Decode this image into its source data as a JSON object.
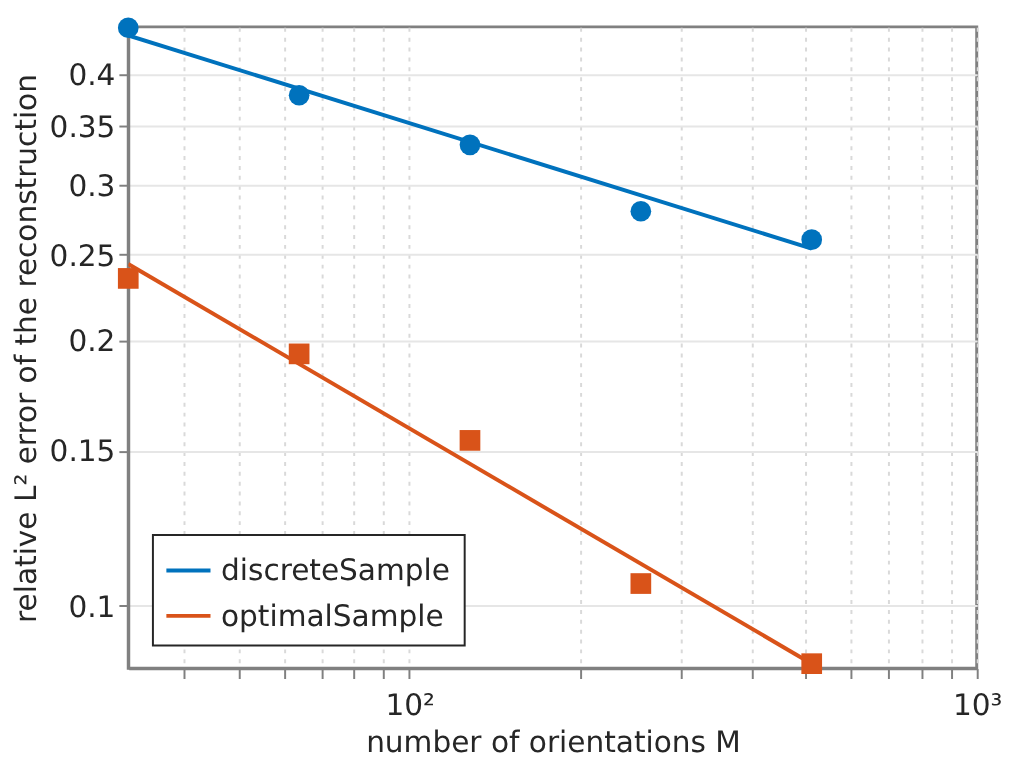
{
  "chart_data": {
    "type": "line",
    "xlabel": "number of orientations M",
    "ylabel": "relative L² error of the reconstruction",
    "log": "xy",
    "grid": true,
    "legend": "bottom left",
    "xlim": [
      32,
      1000
    ],
    "ylim": [
      0.085,
      0.453
    ],
    "xticks": [
      {
        "value": 40,
        "label": null
      },
      {
        "value": 50,
        "label": null
      },
      {
        "value": 60,
        "label": null
      },
      {
        "value": 70,
        "label": null
      },
      {
        "value": 80,
        "label": null
      },
      {
        "value": 90,
        "label": null
      },
      {
        "value": 100,
        "label": "10²"
      },
      {
        "value": 200,
        "label": null
      },
      {
        "value": 300,
        "label": null
      },
      {
        "value": 400,
        "label": null
      },
      {
        "value": 500,
        "label": null
      },
      {
        "value": 600,
        "label": null
      },
      {
        "value": 700,
        "label": null
      },
      {
        "value": 800,
        "label": null
      },
      {
        "value": 900,
        "label": null
      },
      {
        "value": 1000,
        "label": "10³"
      }
    ],
    "yticks": [
      0.1,
      0.15,
      0.2,
      0.25,
      0.3,
      0.35,
      0.4
    ],
    "series": [
      {
        "name": "discreteSample",
        "color": "#0072bd",
        "marker": "none",
        "line_style": "solid",
        "x": [
          32,
          512
        ],
        "values": [
          0.443,
          0.254
        ]
      },
      {
        "name": "optimalSample",
        "color": "#d95319",
        "marker": "none",
        "line_style": "solid",
        "x": [
          32,
          512
        ],
        "values": [
          0.244,
          0.086
        ]
      },
      {
        "type": "scatter",
        "color": "#0072bd",
        "marker": "circle",
        "x": [
          32,
          64,
          128,
          256,
          512
        ],
        "values": [
          0.452,
          0.379,
          0.333,
          0.28,
          0.26
        ]
      },
      {
        "type": "scatter",
        "color": "#d95319",
        "marker": "square",
        "x": [
          32,
          64,
          128,
          256,
          512
        ],
        "values": [
          0.235,
          0.193,
          0.154,
          0.106,
          0.086
        ]
      }
    ]
  }
}
